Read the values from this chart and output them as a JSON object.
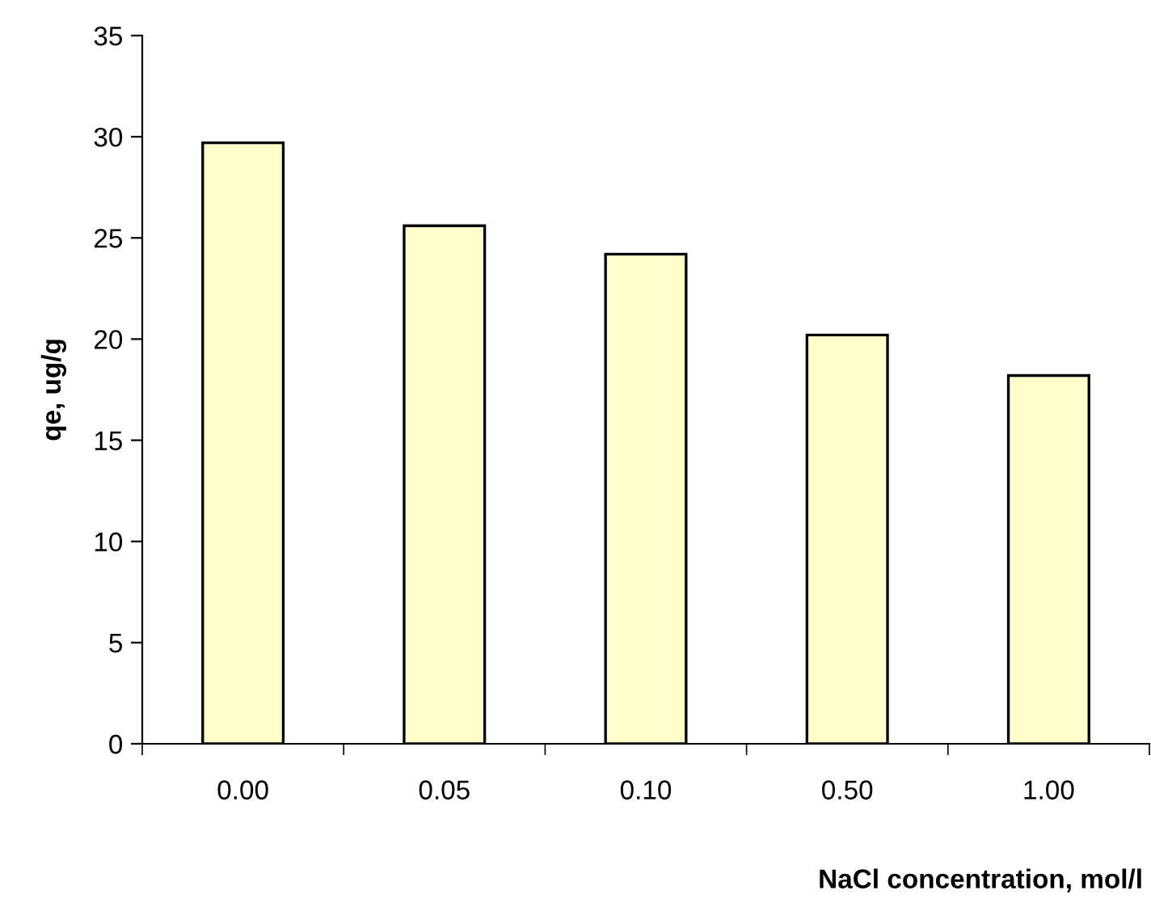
{
  "chart_data": {
    "type": "bar",
    "categories": [
      "0.00",
      "0.05",
      "0.10",
      "0.50",
      "1.00"
    ],
    "values": [
      29.7,
      25.6,
      24.2,
      20.2,
      18.2
    ],
    "color": "#ffffcc",
    "xlabel": "NaCl concentration, mol/l",
    "ylabel": "qe, ug/g",
    "ylim": [
      0,
      35
    ],
    "yticks": [
      0,
      5,
      10,
      15,
      20,
      25,
      30,
      35
    ],
    "grid": false,
    "legend": false
  }
}
